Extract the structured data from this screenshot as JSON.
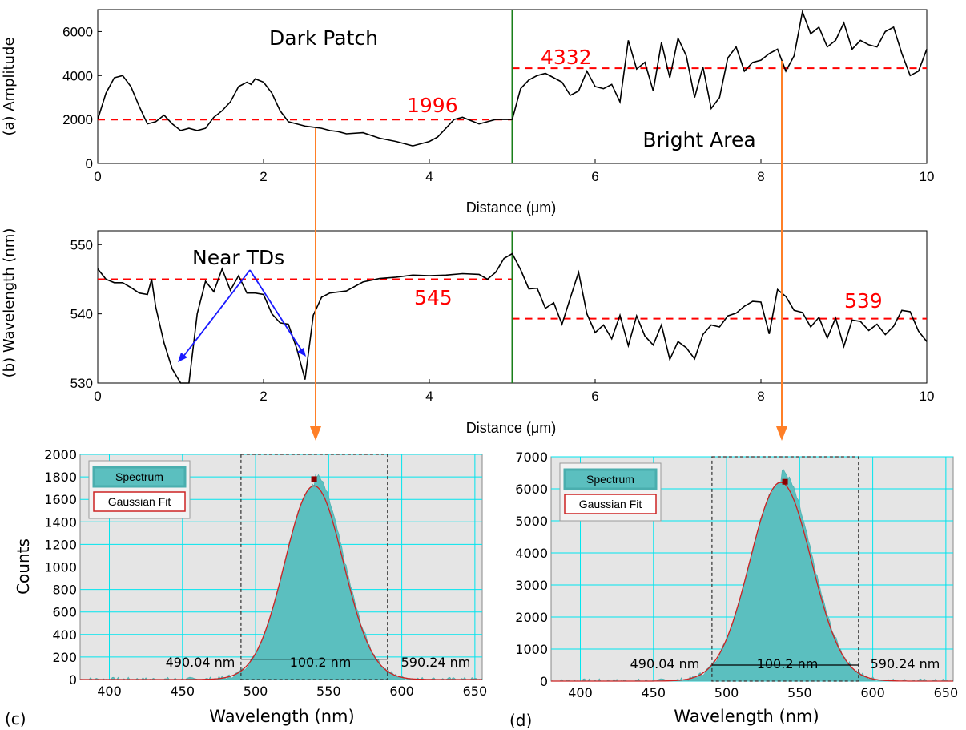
{
  "chart_data": [
    {
      "panel": "(a)",
      "type": "line",
      "ylabel": "(a) Amplitude",
      "xlabel": "Distance (μm)",
      "xlim": [
        0,
        10
      ],
      "ylim": [
        0,
        7000
      ],
      "xticks": [
        "0",
        "2",
        "4",
        "6",
        "8",
        "10"
      ],
      "yticks": [
        "0",
        "2000",
        "4000",
        "6000"
      ],
      "series": [
        {
          "x": [
            0,
            0.1,
            0.2,
            0.3,
            0.4,
            0.5,
            0.55,
            0.6,
            0.7,
            0.8,
            0.9,
            1.0,
            1.1,
            1.2,
            1.3,
            1.4,
            1.5,
            1.6,
            1.7,
            1.8,
            1.85,
            1.9,
            2.0,
            2.1,
            2.2,
            2.3,
            2.4,
            2.5,
            2.6,
            2.7,
            2.8,
            2.9,
            3.0,
            3.2,
            3.4,
            3.6,
            3.8,
            4.0,
            4.1,
            4.2,
            4.3,
            4.4,
            4.5,
            4.6,
            4.7,
            4.8,
            4.9,
            5.0,
            5.1,
            5.2,
            5.3,
            5.4,
            5.5,
            5.6,
            5.7,
            5.8,
            5.9,
            6.0,
            6.1,
            6.2,
            6.3,
            6.4,
            6.5,
            6.6,
            6.7,
            6.8,
            6.9,
            7.0,
            7.1,
            7.2,
            7.3,
            7.4,
            7.5,
            7.6,
            7.7,
            7.8,
            7.9,
            8.0,
            8.1,
            8.2,
            8.3,
            8.4,
            8.5,
            8.6,
            8.7,
            8.8,
            8.9,
            9.0,
            9.1,
            9.2,
            9.3,
            9.4,
            9.5,
            9.6,
            9.7,
            9.8,
            9.9,
            10.0
          ],
          "y": [
            2000,
            3200,
            3900,
            4000,
            3500,
            2600,
            2200,
            1800,
            1900,
            2200,
            1800,
            1500,
            1600,
            1500,
            1600,
            2100,
            2400,
            2800,
            3500,
            3700,
            3600,
            3850,
            3700,
            3200,
            2400,
            1900,
            1800,
            1700,
            1650,
            1600,
            1500,
            1450,
            1350,
            1400,
            1150,
            1000,
            800,
            1000,
            1200,
            1600,
            2000,
            2100,
            1950,
            1800,
            1900,
            2000,
            2000,
            2000,
            3400,
            3800,
            4000,
            4100,
            3900,
            3700,
            3100,
            3300,
            4200,
            3500,
            3400,
            3600,
            2800,
            5600,
            4300,
            4600,
            3300,
            5500,
            3900,
            5700,
            4900,
            3000,
            4400,
            2500,
            3000,
            4800,
            5300,
            4200,
            4600,
            4700,
            5000,
            5200,
            4200,
            4900,
            6900,
            5900,
            6200,
            5300,
            5600,
            6400,
            5200,
            5600,
            5400,
            5300,
            6000,
            6200,
            5000,
            4000,
            4200,
            5200
          ]
        }
      ],
      "reference_lines": [
        {
          "label": "1996",
          "value": 1996,
          "x_range": [
            0,
            5
          ]
        },
        {
          "label": "4332",
          "value": 4332,
          "x_range": [
            5,
            10
          ]
        }
      ],
      "vline_x": 5,
      "annotations": [
        "Dark Patch",
        "Bright Area"
      ]
    },
    {
      "panel": "(b)",
      "type": "line",
      "ylabel": "(b) Wavelength (nm)",
      "xlabel": "Distance (μm)",
      "xlim": [
        0,
        10
      ],
      "ylim": [
        530,
        552
      ],
      "xticks": [
        "0",
        "2",
        "4",
        "6",
        "8",
        "10"
      ],
      "yticks": [
        "530",
        "540",
        "550"
      ],
      "series": [
        {
          "x": [
            0,
            0.1,
            0.2,
            0.3,
            0.4,
            0.5,
            0.6,
            0.65,
            0.7,
            0.8,
            0.9,
            1.0,
            1.05,
            1.1,
            1.2,
            1.3,
            1.4,
            1.5,
            1.6,
            1.7,
            1.8,
            1.9,
            2.0,
            2.1,
            2.2,
            2.3,
            2.4,
            2.5,
            2.6,
            2.7,
            2.8,
            3.0,
            3.2,
            3.4,
            3.6,
            3.8,
            4.0,
            4.2,
            4.4,
            4.6,
            4.7,
            4.8,
            4.9,
            5.0,
            5.1,
            5.2,
            5.3,
            5.4,
            5.5,
            5.6,
            5.7,
            5.8,
            5.9,
            6.0,
            6.1,
            6.2,
            6.3,
            6.4,
            6.5,
            6.6,
            6.7,
            6.8,
            6.9,
            7.0,
            7.1,
            7.2,
            7.3,
            7.4,
            7.5,
            7.6,
            7.7,
            7.8,
            7.9,
            8.0,
            8.1,
            8.2,
            8.3,
            8.4,
            8.5,
            8.6,
            8.7,
            8.8,
            8.9,
            9.0,
            9.1,
            9.2,
            9.3,
            9.4,
            9.5,
            9.6,
            9.7,
            9.8,
            9.9,
            10.0
          ],
          "y": [
            546.5,
            545,
            544.5,
            544.5,
            543.8,
            543,
            542.8,
            545,
            541,
            535.8,
            532,
            529.5,
            529,
            529.5,
            540,
            544.7,
            543.2,
            546.5,
            543.4,
            545.5,
            543,
            543,
            542.8,
            540,
            538.7,
            538.5,
            535,
            530.5,
            539.8,
            542.4,
            543,
            543.3,
            544.6,
            545.1,
            545.3,
            545.6,
            545.5,
            545.6,
            545.8,
            545.7,
            545,
            546,
            548,
            548.7,
            546.4,
            543.6,
            543.7,
            540.8,
            541.6,
            538.5,
            542.3,
            546,
            540,
            537.3,
            538.4,
            536.4,
            539.8,
            535.4,
            539.7,
            536.8,
            535.5,
            538.4,
            533.4,
            536,
            535.1,
            533.5,
            537,
            538.4,
            538.1,
            539.7,
            540.1,
            541.1,
            541.8,
            541.7,
            537.1,
            543.5,
            542.5,
            540.5,
            540.2,
            538.1,
            539.5,
            536.5,
            539.4,
            535.3,
            539.1,
            538.9,
            537.6,
            538.5,
            537,
            538.2,
            540.5,
            540.3,
            537.5,
            536
          ]
        }
      ],
      "reference_lines": [
        {
          "label": "545",
          "value": 545,
          "x_range": [
            0,
            5
          ]
        },
        {
          "label": "539",
          "value": 539.3,
          "x_range": [
            5,
            10
          ]
        }
      ],
      "vline_x": 5,
      "annotations": [
        "Near TDs"
      ]
    },
    {
      "panel": "(c)",
      "type": "area",
      "xlabel": "Wavelength (nm)",
      "ylabel": "Counts",
      "xlim": [
        380,
        655
      ],
      "ylim": [
        0,
        2000
      ],
      "xticks": [
        "400",
        "450",
        "500",
        "550",
        "600",
        "650"
      ],
      "yticks": [
        "0",
        "200",
        "400",
        "600",
        "800",
        "1000",
        "1200",
        "1400",
        "1600",
        "1800",
        "2000"
      ],
      "legend": [
        "Spectrum",
        "Gaussian Fit"
      ],
      "legend_position": "top-left",
      "gaussian": {
        "center": 540,
        "peak": 1720,
        "sigma": 20
      },
      "peak_marker": {
        "x": 540,
        "y": 1780
      },
      "fwhm": {
        "left": "490.04 nm",
        "width": "100.2 nm",
        "right": "590.24 nm",
        "left_x": 490.04,
        "right_x": 590.24,
        "y": 180
      }
    },
    {
      "panel": "(d)",
      "type": "area",
      "xlabel": "Wavelength (nm)",
      "ylabel": "",
      "xlim": [
        380,
        655
      ],
      "ylim": [
        0,
        7000
      ],
      "xticks": [
        "400",
        "450",
        "500",
        "550",
        "600",
        "650"
      ],
      "yticks": [
        "0",
        "1000",
        "2000",
        "3000",
        "4000",
        "5000",
        "6000",
        "7000"
      ],
      "legend": [
        "Spectrum",
        "Gaussian Fit"
      ],
      "legend_position": "top-left",
      "gaussian": {
        "center": 537,
        "peak": 6200,
        "sigma": 21
      },
      "peak_marker": {
        "x": 540,
        "y": 6220
      },
      "fwhm": {
        "left": "490.04 nm",
        "width": "100.2 nm",
        "right": "590.24 nm",
        "left_x": 490.04,
        "right_x": 590.24,
        "y": 500
      }
    }
  ],
  "panel_labels": {
    "c": "(c)",
    "d": "(d)"
  },
  "colors": {
    "trace": "#000000",
    "ref": "#ff0000",
    "vline": "#1a7f1a",
    "arrow_orange": "#ff7f27",
    "arrow_blue": "#1a1aff",
    "spectrum": "#5bbfbf",
    "fit": "#cc2222",
    "grid": "#00e5ee",
    "plot_bg": "#e5e5e5"
  }
}
